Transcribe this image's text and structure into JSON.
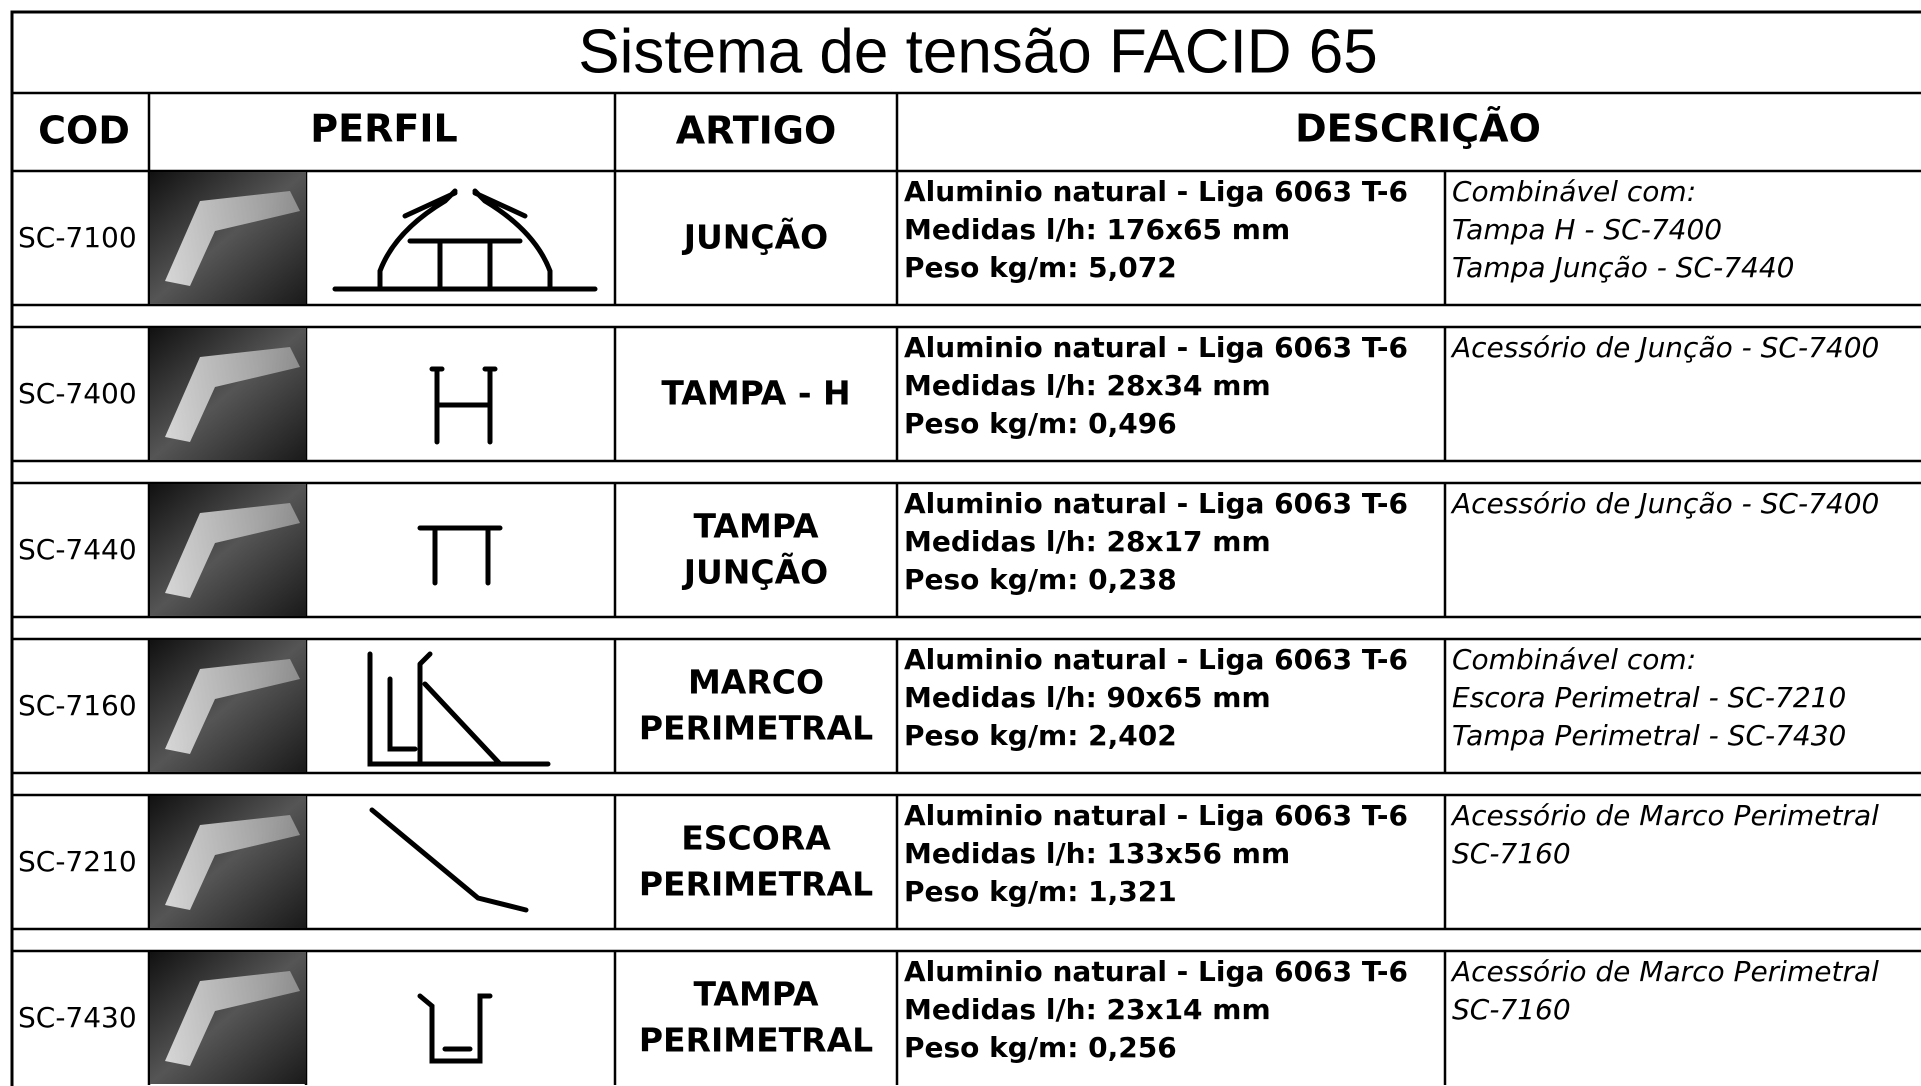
{
  "title": "Sistema de tensão FACID 65",
  "headers": [
    "COD",
    "PERFIL",
    "ARTIGO",
    "DESCRIÇÃO"
  ],
  "rows": [
    {
      "cod": "SC-7100",
      "artigo": [
        "JUNÇÃO"
      ],
      "description": [
        "Aluminio natural - Liga 6063 T-6",
        "Medidas l/h: 176x65 mm",
        "Peso kg/m: 5,072"
      ],
      "notes": [
        "Combinável com:",
        "Tampa H - SC-7400",
        "Tampa Junção - SC-7440"
      ]
    },
    {
      "cod": "SC-7400",
      "artigo": [
        "TAMPA - H"
      ],
      "description": [
        "Aluminio natural - Liga 6063 T-6",
        "Medidas l/h: 28x34 mm",
        "Peso kg/m: 0,496"
      ],
      "notes": [
        "Acessório de Junção - SC-7400"
      ]
    },
    {
      "cod": "SC-7440",
      "artigo": [
        "TAMPA",
        "JUNÇÃO"
      ],
      "description": [
        "Aluminio natural - Liga 6063 T-6",
        "Medidas l/h: 28x17 mm",
        "Peso kg/m: 0,238"
      ],
      "notes": [
        "Acessório de Junção - SC-7400"
      ]
    },
    {
      "cod": "SC-7160",
      "artigo": [
        "MARCO",
        "PERIMETRAL"
      ],
      "description": [
        "Aluminio natural - Liga 6063 T-6",
        "Medidas l/h: 90x65 mm",
        "Peso kg/m: 2,402"
      ],
      "notes": [
        "Combinável com:",
        "Escora Perimetral - SC-7210",
        "Tampa Perimetral - SC-7430"
      ]
    },
    {
      "cod": "SC-7210",
      "artigo": [
        "ESCORA",
        "PERIMETRAL"
      ],
      "description": [
        "Aluminio natural - Liga 6063 T-6",
        "Medidas l/h: 133x56 mm",
        "Peso kg/m: 1,321"
      ],
      "notes": [
        "Acessório de Marco Perimetral",
        "SC-7160"
      ]
    },
    {
      "cod": "SC-7430",
      "artigo": [
        "TAMPA",
        "PERIMETRAL"
      ],
      "description": [
        "Aluminio natural - Liga 6063 T-6",
        "Medidas l/h: 23x14 mm",
        "Peso kg/m: 0,256"
      ],
      "notes": [
        "Acessório de Marco Perimetral",
        "SC-7160"
      ]
    }
  ]
}
